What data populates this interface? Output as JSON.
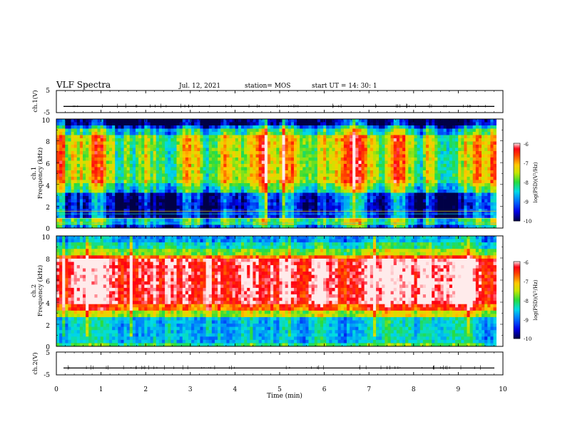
{
  "header": {
    "title": "VLF Spectra",
    "date": "Jul. 12, 2021",
    "station": "station= MOS",
    "start": "start UT = 14: 30: 1"
  },
  "chart_data": [
    {
      "type": "line",
      "panel": "ch1-waveform",
      "ylabel": "ch.1(V)",
      "ylim": [
        -5,
        5
      ],
      "y_ticks": [
        "5",
        "-5"
      ],
      "values": [
        -2.2
      ]
    },
    {
      "type": "heatmap",
      "panel": "ch1-spectrogram",
      "ylabel_line1": "ch.1",
      "ylabel_line2": "Frequency (kHz)",
      "ylim": [
        0,
        10
      ],
      "y_ticks": [
        "0",
        "2",
        "4",
        "6",
        "8",
        "10"
      ],
      "colorbar": {
        "min": -10,
        "max": -6,
        "ticks": [
          "-6",
          "-7",
          "-8",
          "-9",
          "-10"
        ],
        "label": "log(PSD)(V²/Hz)"
      }
    },
    {
      "type": "heatmap",
      "panel": "ch2-spectrogram",
      "ylabel_line1": "ch.2",
      "ylabel_line2": "Frequency (kHz)",
      "ylim": [
        0,
        10
      ],
      "y_ticks": [
        "0",
        "2",
        "4",
        "6",
        "8",
        "10"
      ],
      "colorbar": {
        "min": -10,
        "max": -6,
        "ticks": [
          "-6",
          "-7",
          "-8",
          "-9",
          "-10"
        ],
        "label": "log(PSD)(V²/Hz)"
      }
    },
    {
      "type": "line",
      "panel": "ch2-waveform",
      "ylabel": "ch.2(V)",
      "ylim": [
        -5,
        5
      ],
      "y_ticks": [
        "5",
        "-5"
      ],
      "values": [
        -2.0
      ]
    }
  ],
  "xaxis": {
    "label": "Time (min)",
    "xlim": [
      0,
      10
    ],
    "ticks": [
      "0",
      "1",
      "2",
      "3",
      "4",
      "5",
      "6",
      "7",
      "8",
      "9",
      "10"
    ],
    "data_end": 9.85
  },
  "colors": {
    "background": "#ffffff",
    "axis": "#000000",
    "noise": "#000000"
  }
}
